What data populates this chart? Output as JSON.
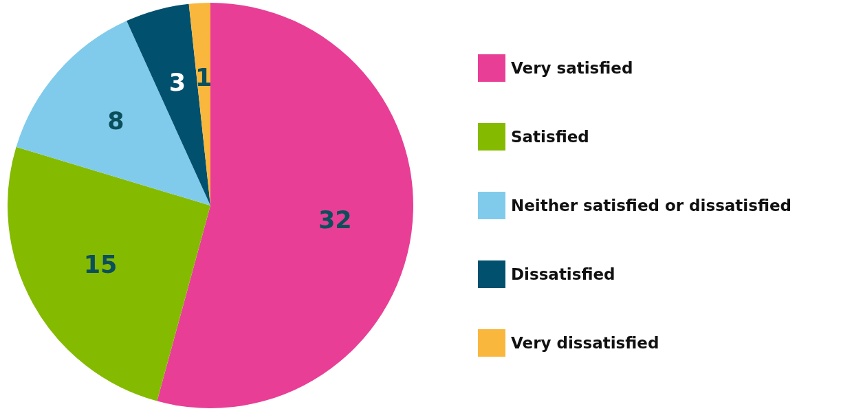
{
  "chart_data": {
    "type": "pie",
    "categories": [
      "Very satisfied",
      "Satisfied",
      "Neither satisfied or dissatisfied",
      "Dissatisfied",
      "Very dissatisfied"
    ],
    "values": [
      32,
      15,
      8,
      3,
      1
    ],
    "colors": [
      "#e83e96",
      "#84bb00",
      "#80cbeb",
      "#00506e",
      "#f9b73e"
    ],
    "data_labels": true,
    "legend": "right"
  }
}
